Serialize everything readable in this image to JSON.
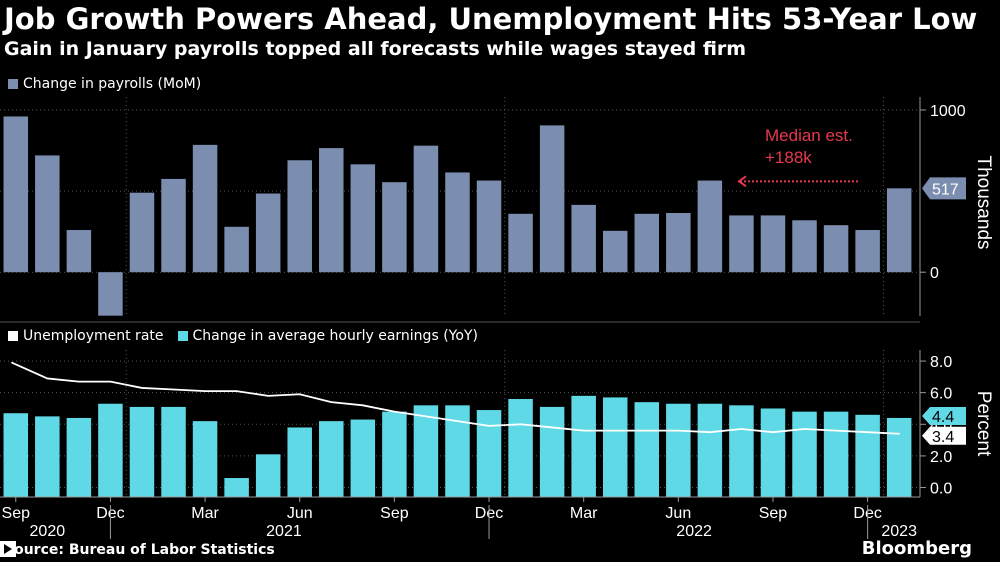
{
  "title": "Job Growth Powers Ahead, Unemployment Hits 53-Year Low",
  "subtitle": "Gain in January payrolls topped all forecasts while wages stayed firm",
  "source": "Source: Bureau of Labor Statistics",
  "brand": "Bloomberg",
  "colors": {
    "payrolls": "#7b8eb0",
    "earnings": "#5fd9e6",
    "unemployment": "#ffffff",
    "annotation": "#e8384f",
    "grid": "#4a4a4a"
  },
  "chart_data": [
    {
      "type": "bar",
      "title": "Change in payrolls (MoM)",
      "legend": [
        "Change in payrolls (MoM)"
      ],
      "ylabel": "Thousands",
      "ylim": [
        -270,
        1080
      ],
      "yticks": [
        0,
        1000
      ],
      "categories": [
        "2020-09",
        "2020-10",
        "2020-11",
        "2020-12",
        "2021-01",
        "2021-02",
        "2021-03",
        "2021-04",
        "2021-05",
        "2021-06",
        "2021-07",
        "2021-08",
        "2021-09",
        "2021-10",
        "2021-11",
        "2021-12",
        "2022-01",
        "2022-02",
        "2022-03",
        "2022-04",
        "2022-05",
        "2022-06",
        "2022-07",
        "2022-08",
        "2022-09",
        "2022-10",
        "2022-11",
        "2022-12",
        "2023-01"
      ],
      "values": [
        960,
        720,
        260,
        -268,
        490,
        575,
        785,
        280,
        485,
        690,
        765,
        665,
        555,
        780,
        615,
        565,
        360,
        905,
        415,
        255,
        360,
        365,
        565,
        350,
        350,
        320,
        290,
        260,
        517
      ],
      "value_label": "517",
      "annotation": {
        "text_line1": "Median est.",
        "text_line2": "+188k"
      }
    },
    {
      "type": "bar",
      "title": "Unemployment rate and change in average hourly earnings (YoY)",
      "legend": [
        "Unemployment rate",
        "Change in average hourly earnings (YoY)"
      ],
      "ylabel": "Percent",
      "ylim": [
        -0.6,
        8.7
      ],
      "yticks": [
        "0.0",
        "2.0",
        "4.0",
        "6.0",
        "8.0"
      ],
      "categories": [
        "2020-09",
        "2020-10",
        "2020-11",
        "2020-12",
        "2021-01",
        "2021-02",
        "2021-03",
        "2021-04",
        "2021-05",
        "2021-06",
        "2021-07",
        "2021-08",
        "2021-09",
        "2021-10",
        "2021-11",
        "2021-12",
        "2022-01",
        "2022-02",
        "2022-03",
        "2022-04",
        "2022-05",
        "2022-06",
        "2022-07",
        "2022-08",
        "2022-09",
        "2022-10",
        "2022-11",
        "2022-12",
        "2023-01"
      ],
      "series": [
        {
          "name": "Change in average hourly earnings (YoY)",
          "type": "bar",
          "values": [
            4.7,
            4.5,
            4.4,
            5.3,
            5.1,
            5.1,
            4.2,
            0.6,
            2.1,
            3.8,
            4.2,
            4.3,
            4.8,
            5.2,
            5.2,
            4.9,
            5.6,
            5.1,
            5.8,
            5.7,
            5.4,
            5.3,
            5.3,
            5.2,
            5.0,
            4.8,
            4.8,
            4.6,
            4.4
          ]
        },
        {
          "name": "Unemployment rate",
          "type": "line",
          "values": [
            7.9,
            6.9,
            6.7,
            6.7,
            6.3,
            6.2,
            6.1,
            6.1,
            5.8,
            5.9,
            5.4,
            5.2,
            4.8,
            4.5,
            4.2,
            3.9,
            4.0,
            3.8,
            3.6,
            3.6,
            3.6,
            3.6,
            3.5,
            3.7,
            3.5,
            3.7,
            3.6,
            3.5,
            3.4
          ]
        }
      ],
      "value_labels": [
        "4.4",
        "3.4"
      ]
    }
  ],
  "x_axis": {
    "month_labels": [
      "Sep",
      "Dec",
      "Mar",
      "Jun",
      "Sep",
      "Dec",
      "Mar",
      "Jun",
      "Sep",
      "Dec"
    ],
    "year_labels": [
      "2020",
      "2021",
      "2022",
      "2023"
    ]
  }
}
